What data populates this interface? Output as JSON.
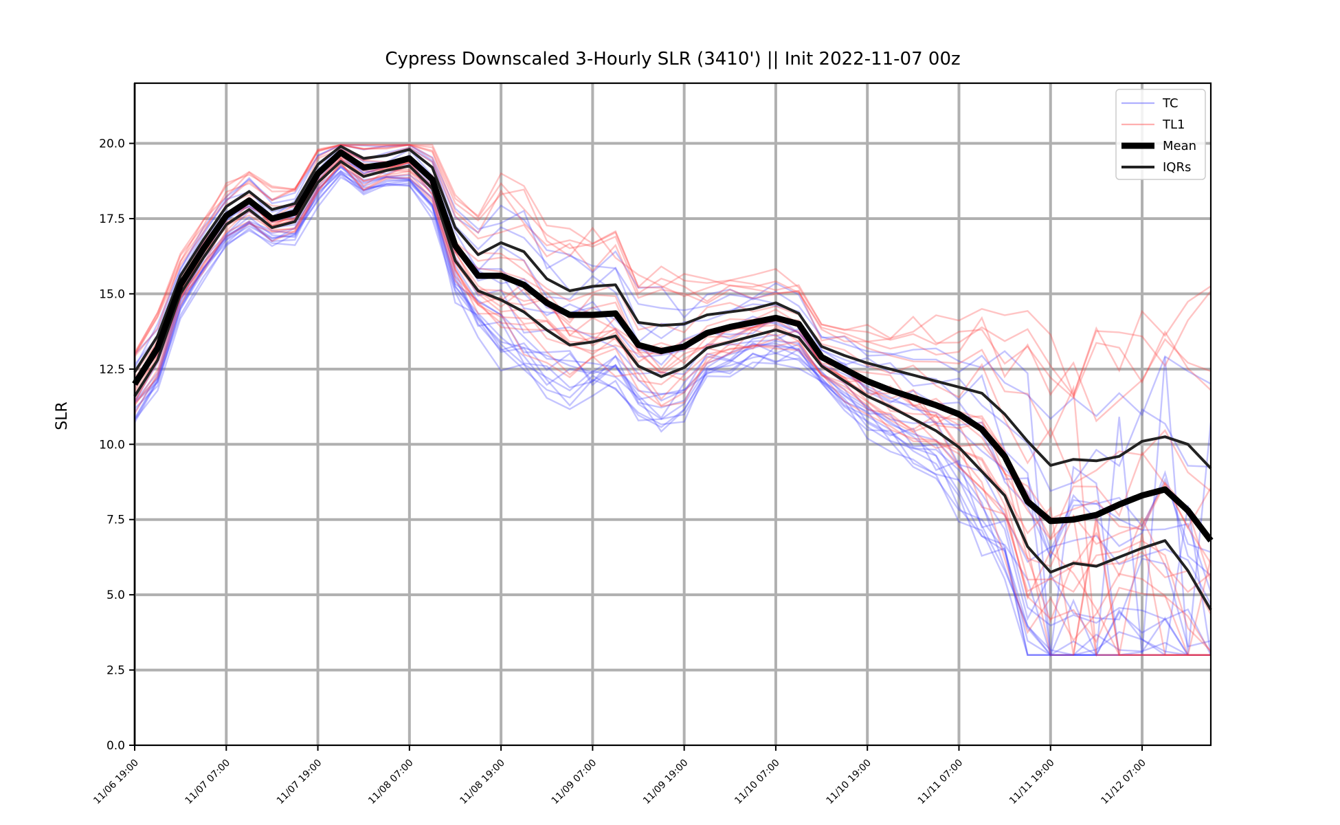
{
  "chart_data": {
    "type": "line",
    "title": "Cypress Downscaled 3-Hourly SLR (3410') || Init 2022-11-07 00z",
    "xlabel": "",
    "ylabel": "SLR",
    "ylim": [
      0,
      22
    ],
    "yticks": [
      0.0,
      2.5,
      5.0,
      7.5,
      10.0,
      12.5,
      15.0,
      17.5,
      20.0
    ],
    "ytick_labels": [
      "0.0",
      "2.5",
      "5.0",
      "7.5",
      "10.0",
      "12.5",
      "15.0",
      "17.5",
      "20.0"
    ],
    "x_units": "hours since 11/06 19:00",
    "xlim": [
      0,
      141
    ],
    "xticks": [
      0,
      12,
      24,
      36,
      48,
      60,
      72,
      84,
      96,
      108,
      120,
      132
    ],
    "xtick_labels": [
      "11/06 19:00",
      "11/07 07:00",
      "11/07 19:00",
      "11/08 07:00",
      "11/08 19:00",
      "11/09 07:00",
      "11/09 19:00",
      "11/10 07:00",
      "11/10 19:00",
      "11/11 07:00",
      "11/11 19:00",
      "11/12 07:00"
    ],
    "grid": true,
    "legend_position": "top-right",
    "legend": [
      {
        "label": "TC",
        "color": "#4d4dff",
        "style": "thin"
      },
      {
        "label": "TL1",
        "color": "#ff4d4d",
        "style": "thin"
      },
      {
        "label": "Mean",
        "color": "#000000",
        "style": "thick"
      },
      {
        "label": "IQRs",
        "color": "#222222",
        "style": "medium"
      }
    ],
    "colors": {
      "tc": "#3b3bff",
      "tl1": "#ff3b3b",
      "mean": "#000000",
      "iqr": "#222222",
      "grid": "#b0b0b0"
    },
    "x": [
      0,
      3,
      6,
      9,
      12,
      15,
      18,
      21,
      24,
      27,
      30,
      33,
      36,
      39,
      42,
      45,
      48,
      51,
      54,
      57,
      60,
      63,
      66,
      69,
      72,
      75,
      78,
      81,
      84,
      87,
      90,
      93,
      96,
      99,
      102,
      105,
      108,
      111,
      114,
      117,
      120,
      123,
      126,
      129,
      132,
      135,
      138,
      141
    ],
    "series": [
      {
        "name": "Mean",
        "values": [
          12.0,
          13.2,
          15.3,
          16.5,
          17.6,
          18.1,
          17.5,
          17.7,
          19.0,
          19.7,
          19.2,
          19.3,
          19.5,
          18.8,
          16.6,
          15.6,
          15.6,
          15.3,
          14.7,
          14.3,
          14.3,
          14.35,
          13.3,
          13.1,
          13.25,
          13.7,
          13.9,
          14.05,
          14.2,
          14.0,
          12.9,
          12.5,
          12.1,
          11.8,
          11.55,
          11.3,
          11.0,
          10.5,
          9.6,
          8.1,
          7.45,
          7.5,
          7.65,
          8.0,
          8.3,
          8.5,
          7.8,
          6.8
        ]
      },
      {
        "name": "IQR upper",
        "values": [
          12.4,
          13.6,
          15.6,
          16.8,
          17.9,
          18.4,
          17.8,
          18.0,
          19.3,
          19.9,
          19.5,
          19.6,
          19.8,
          19.2,
          17.2,
          16.3,
          16.7,
          16.4,
          15.5,
          15.1,
          15.25,
          15.3,
          14.05,
          13.95,
          14.0,
          14.3,
          14.4,
          14.5,
          14.7,
          14.35,
          13.25,
          12.95,
          12.7,
          12.5,
          12.3,
          12.1,
          11.9,
          11.7,
          11.0,
          10.1,
          9.3,
          9.5,
          9.45,
          9.6,
          10.1,
          10.25,
          10.0,
          9.2
        ]
      },
      {
        "name": "IQR lower",
        "values": [
          11.6,
          12.8,
          15.0,
          16.2,
          17.3,
          17.8,
          17.2,
          17.4,
          18.7,
          19.4,
          18.9,
          19.1,
          19.25,
          18.5,
          16.1,
          15.1,
          14.8,
          14.4,
          13.8,
          13.3,
          13.4,
          13.6,
          12.6,
          12.25,
          12.55,
          13.2,
          13.4,
          13.6,
          13.8,
          13.55,
          12.6,
          12.1,
          11.6,
          11.25,
          10.85,
          10.45,
          9.9,
          9.1,
          8.3,
          6.6,
          5.75,
          6.05,
          5.95,
          6.25,
          6.55,
          6.8,
          5.8,
          4.5
        ]
      }
    ],
    "ensemble_notes": "Thin translucent lines show individual TC (blue) and TL1 (red) members scattered around the mean; several members drop to 3.0 after 11/11 16:00."
  }
}
